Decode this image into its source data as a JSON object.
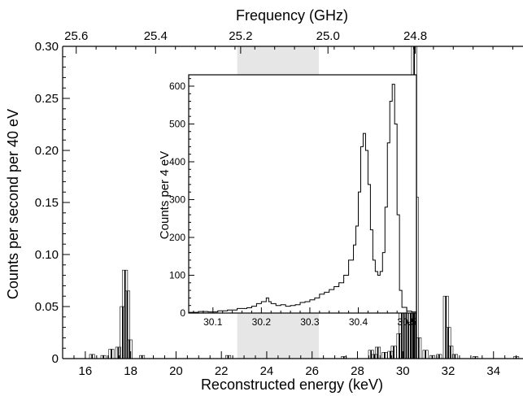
{
  "chart_data": {
    "type": "histogram",
    "main": {
      "xlabel": "Reconstructed energy (keV)",
      "ylabel": "Counts per second per 40 eV",
      "x_top_label": "Frequency (GHz)",
      "xlim": [
        15,
        35.3
      ],
      "ylim": [
        0,
        0.3
      ],
      "x_ticks": [
        16,
        18,
        20,
        22,
        24,
        26,
        28,
        30,
        32,
        34
      ],
      "y_ticks": [
        0,
        0.05,
        0.1,
        0.15,
        0.2,
        0.25,
        0.3
      ],
      "y_tick_labels": [
        "0",
        "0.05",
        "0.10",
        "0.15",
        "0.20",
        "0.25",
        "0.30"
      ],
      "top_ticks_ghz": [
        "25.6",
        "25.4",
        "25.2",
        "25.0",
        "24.8"
      ],
      "top_ticks_kev": [
        15.6,
        19.1,
        22.85,
        26.7,
        30.55
      ],
      "shaded_region_kev": [
        22.7,
        26.3
      ],
      "peaks": [
        {
          "x": 16.3,
          "y": 0.004
        },
        {
          "x": 16.8,
          "y": 0.003
        },
        {
          "x": 17.15,
          "y": 0.009
        },
        {
          "x": 17.45,
          "y": 0.011
        },
        {
          "x": 17.65,
          "y": 0.05
        },
        {
          "x": 17.75,
          "y": 0.085
        },
        {
          "x": 17.85,
          "y": 0.065
        },
        {
          "x": 17.95,
          "y": 0.018
        },
        {
          "x": 18.5,
          "y": 0.003
        },
        {
          "x": 22.3,
          "y": 0.003
        },
        {
          "x": 27.4,
          "y": 0.002
        },
        {
          "x": 28.6,
          "y": 0.008
        },
        {
          "x": 28.75,
          "y": 0.004
        },
        {
          "x": 28.9,
          "y": 0.011
        },
        {
          "x": 29.2,
          "y": 0.006
        },
        {
          "x": 29.45,
          "y": 0.007
        },
        {
          "x": 29.6,
          "y": 0.012
        },
        {
          "x": 29.85,
          "y": 0.024
        },
        {
          "x": 29.95,
          "y": 0.045
        },
        {
          "x": 30.05,
          "y": 0.1
        },
        {
          "x": 30.15,
          "y": 0.072
        },
        {
          "x": 30.25,
          "y": 0.035
        },
        {
          "x": 30.35,
          "y": 0.09
        },
        {
          "x": 30.45,
          "y": 0.26
        },
        {
          "x": 30.5,
          "y": 0.318
        },
        {
          "x": 30.58,
          "y": 0.155
        },
        {
          "x": 30.7,
          "y": 0.02
        },
        {
          "x": 31.0,
          "y": 0.008
        },
        {
          "x": 31.3,
          "y": 0.003
        },
        {
          "x": 31.6,
          "y": 0.004
        },
        {
          "x": 31.9,
          "y": 0.06
        },
        {
          "x": 32.0,
          "y": 0.03
        },
        {
          "x": 32.1,
          "y": 0.012
        },
        {
          "x": 32.3,
          "y": 0.004
        },
        {
          "x": 33.2,
          "y": 0.002
        },
        {
          "x": 35.0,
          "y": 0.002
        }
      ]
    },
    "inset": {
      "ylabel": "Counts per 4 eV",
      "xlim": [
        30.05,
        30.52
      ],
      "ylim": [
        0,
        630
      ],
      "x_ticks": [
        30.1,
        30.2,
        30.3,
        30.4,
        30.5
      ],
      "x_tick_labels": [
        "30.1",
        "30.2",
        "30.3",
        "30.4",
        "30.5"
      ],
      "y_ticks": [
        0,
        100,
        200,
        300,
        400,
        500,
        600
      ],
      "x": [
        30.05,
        30.07,
        30.09,
        30.11,
        30.13,
        30.15,
        30.17,
        30.18,
        30.19,
        30.2,
        30.21,
        30.215,
        30.22,
        30.23,
        30.24,
        30.25,
        30.26,
        30.27,
        30.28,
        30.29,
        30.3,
        30.31,
        30.32,
        30.33,
        30.34,
        30.35,
        30.36,
        30.37,
        30.38,
        30.39,
        30.395,
        30.4,
        30.405,
        30.41,
        30.415,
        30.42,
        30.425,
        30.43,
        30.435,
        30.44,
        30.445,
        30.45,
        30.455,
        30.46,
        30.465,
        30.47,
        30.475,
        30.48,
        30.485,
        30.49,
        30.5,
        30.51,
        30.52
      ],
      "y": [
        2,
        4,
        3,
        6,
        8,
        12,
        14,
        18,
        25,
        30,
        40,
        30,
        25,
        20,
        22,
        18,
        20,
        22,
        28,
        30,
        35,
        40,
        50,
        55,
        62,
        70,
        80,
        100,
        140,
        180,
        230,
        320,
        440,
        475,
        430,
        340,
        220,
        140,
        110,
        100,
        110,
        160,
        280,
        450,
        560,
        605,
        500,
        260,
        60,
        15,
        5,
        3,
        2
      ]
    }
  }
}
